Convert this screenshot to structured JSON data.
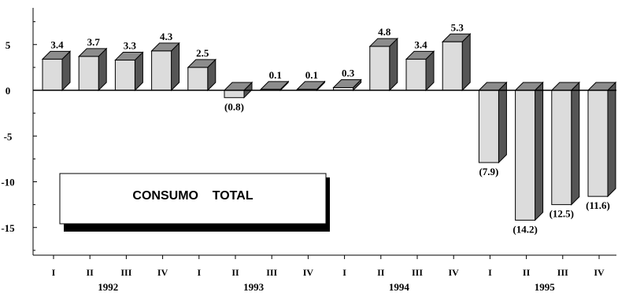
{
  "chart_data": {
    "type": "bar",
    "title": "",
    "legend_label": "CONSUMO    TOTAL",
    "categories": [
      "I",
      "II",
      "III",
      "IV",
      "I",
      "II",
      "III",
      "IV",
      "I",
      "II",
      "III",
      "IV",
      "I",
      "II",
      "III",
      "IV"
    ],
    "years": [
      "1992",
      "1993",
      "1994",
      "1995"
    ],
    "values": [
      3.4,
      3.7,
      3.3,
      4.3,
      2.5,
      -0.8,
      0.1,
      0.1,
      0.3,
      4.8,
      3.4,
      5.3,
      -7.9,
      -14.2,
      -12.5,
      -11.6
    ],
    "labels": [
      "3.4",
      "3.7",
      "3.3",
      "4.3",
      "2.5",
      "(0.8)",
      "0.1",
      "0.1",
      "0.3",
      "4.8",
      "3.4",
      "5.3",
      "(7.9)",
      "(14.2)",
      "(12.5)",
      "(11.6)"
    ],
    "yticks": [
      "5",
      "0",
      "-5",
      "-10",
      "-15"
    ],
    "ylim": [
      -17.5,
      9.5
    ],
    "grid": false,
    "colors": {
      "front": "#dcdcdc",
      "side": "#555555",
      "top": "#8c8c8c",
      "edge": "#000000"
    }
  }
}
